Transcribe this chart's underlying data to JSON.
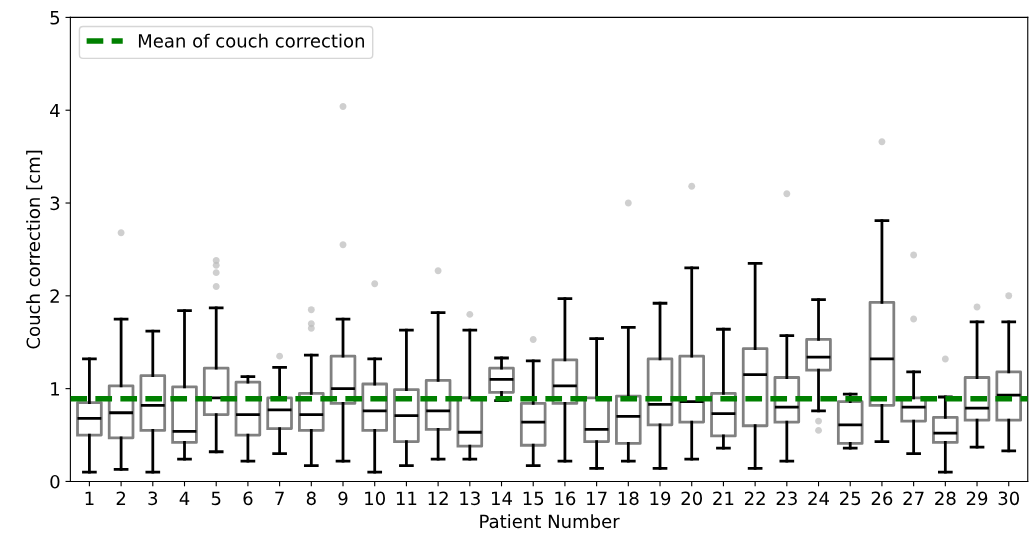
{
  "chart_data": {
    "type": "box",
    "xlabel": "Patient Number",
    "ylabel": "Couch correction [cm]",
    "categories": [
      "1",
      "2",
      "3",
      "4",
      "5",
      "6",
      "7",
      "8",
      "9",
      "10",
      "11",
      "12",
      "13",
      "14",
      "15",
      "16",
      "17",
      "18",
      "19",
      "20",
      "21",
      "22",
      "23",
      "24",
      "25",
      "26",
      "27",
      "28",
      "29",
      "30"
    ],
    "ylim": [
      0,
      5
    ],
    "yticks": [
      0,
      1,
      2,
      3,
      4,
      5
    ],
    "grid": false,
    "legend": "top left",
    "ref_lines": [
      {
        "axis": "y",
        "value": 0.89,
        "label": "Mean of couch correction",
        "color": "#008000",
        "line_style": "dashed"
      }
    ],
    "boxes": [
      {
        "low": 0.1,
        "q1": 0.5,
        "median": 0.68,
        "q3": 0.85,
        "high": 1.32
      },
      {
        "low": 0.13,
        "q1": 0.47,
        "median": 0.74,
        "q3": 1.03,
        "high": 1.75,
        "outliers": [
          2.68
        ]
      },
      {
        "low": 0.1,
        "q1": 0.55,
        "median": 0.82,
        "q3": 1.14,
        "high": 1.62
      },
      {
        "low": 0.24,
        "q1": 0.42,
        "median": 0.54,
        "q3": 1.02,
        "high": 1.84
      },
      {
        "low": 0.32,
        "q1": 0.72,
        "median": 0.9,
        "q3": 1.22,
        "high": 1.87,
        "outliers": [
          2.1,
          2.25,
          2.33,
          2.38
        ]
      },
      {
        "low": 0.22,
        "q1": 0.5,
        "median": 0.72,
        "q3": 1.07,
        "high": 1.13
      },
      {
        "low": 0.3,
        "q1": 0.57,
        "median": 0.77,
        "q3": 0.9,
        "high": 1.23,
        "outliers": [
          1.35
        ]
      },
      {
        "low": 0.17,
        "q1": 0.55,
        "median": 0.72,
        "q3": 0.95,
        "high": 1.36,
        "outliers": [
          1.65,
          1.7,
          1.85
        ]
      },
      {
        "low": 0.22,
        "q1": 0.84,
        "median": 1.0,
        "q3": 1.35,
        "high": 1.75,
        "outliers": [
          2.55,
          4.04
        ]
      },
      {
        "low": 0.1,
        "q1": 0.55,
        "median": 0.76,
        "q3": 1.05,
        "high": 1.32,
        "outliers": [
          2.13
        ]
      },
      {
        "low": 0.17,
        "q1": 0.43,
        "median": 0.71,
        "q3": 0.99,
        "high": 1.63
      },
      {
        "low": 0.24,
        "q1": 0.56,
        "median": 0.76,
        "q3": 1.09,
        "high": 1.82,
        "outliers": [
          2.27
        ]
      },
      {
        "low": 0.24,
        "q1": 0.38,
        "median": 0.53,
        "q3": 0.9,
        "high": 1.63,
        "outliers": [
          1.8
        ]
      },
      {
        "low": 0.87,
        "q1": 0.96,
        "median": 1.1,
        "q3": 1.22,
        "high": 1.33
      },
      {
        "low": 0.17,
        "q1": 0.39,
        "median": 0.64,
        "q3": 0.84,
        "high": 1.3,
        "outliers": [
          1.53
        ]
      },
      {
        "low": 0.22,
        "q1": 0.84,
        "median": 1.03,
        "q3": 1.31,
        "high": 1.97
      },
      {
        "low": 0.14,
        "q1": 0.43,
        "median": 0.56,
        "q3": 0.9,
        "high": 1.54
      },
      {
        "low": 0.22,
        "q1": 0.41,
        "median": 0.7,
        "q3": 0.92,
        "high": 1.66,
        "outliers": [
          3.0
        ]
      },
      {
        "low": 0.14,
        "q1": 0.61,
        "median": 0.83,
        "q3": 1.32,
        "high": 1.92
      },
      {
        "low": 0.24,
        "q1": 0.64,
        "median": 0.86,
        "q3": 1.35,
        "high": 2.3,
        "outliers": [
          3.18
        ]
      },
      {
        "low": 0.36,
        "q1": 0.49,
        "median": 0.73,
        "q3": 0.95,
        "high": 1.64
      },
      {
        "low": 0.14,
        "q1": 0.6,
        "median": 1.15,
        "q3": 1.43,
        "high": 2.35
      },
      {
        "low": 0.22,
        "q1": 0.64,
        "median": 0.8,
        "q3": 1.12,
        "high": 1.57,
        "outliers": [
          3.1
        ]
      },
      {
        "low": 0.76,
        "q1": 1.2,
        "median": 1.34,
        "q3": 1.53,
        "high": 1.96,
        "outliers": [
          0.55,
          0.65
        ]
      },
      {
        "low": 0.36,
        "q1": 0.41,
        "median": 0.61,
        "q3": 0.86,
        "high": 0.94
      },
      {
        "low": 0.43,
        "q1": 0.82,
        "median": 1.32,
        "q3": 1.93,
        "high": 2.81,
        "outliers": [
          3.66
        ]
      },
      {
        "low": 0.3,
        "q1": 0.65,
        "median": 0.8,
        "q3": 0.9,
        "high": 1.18,
        "outliers": [
          1.75,
          2.44
        ]
      },
      {
        "low": 0.1,
        "q1": 0.42,
        "median": 0.52,
        "q3": 0.69,
        "high": 0.91,
        "outliers": [
          1.32
        ]
      },
      {
        "low": 0.37,
        "q1": 0.66,
        "median": 0.79,
        "q3": 1.12,
        "high": 1.72,
        "outliers": [
          1.88
        ]
      },
      {
        "low": 0.33,
        "q1": 0.66,
        "median": 0.93,
        "q3": 1.18,
        "high": 1.72,
        "outliers": [
          2.0
        ]
      }
    ]
  }
}
